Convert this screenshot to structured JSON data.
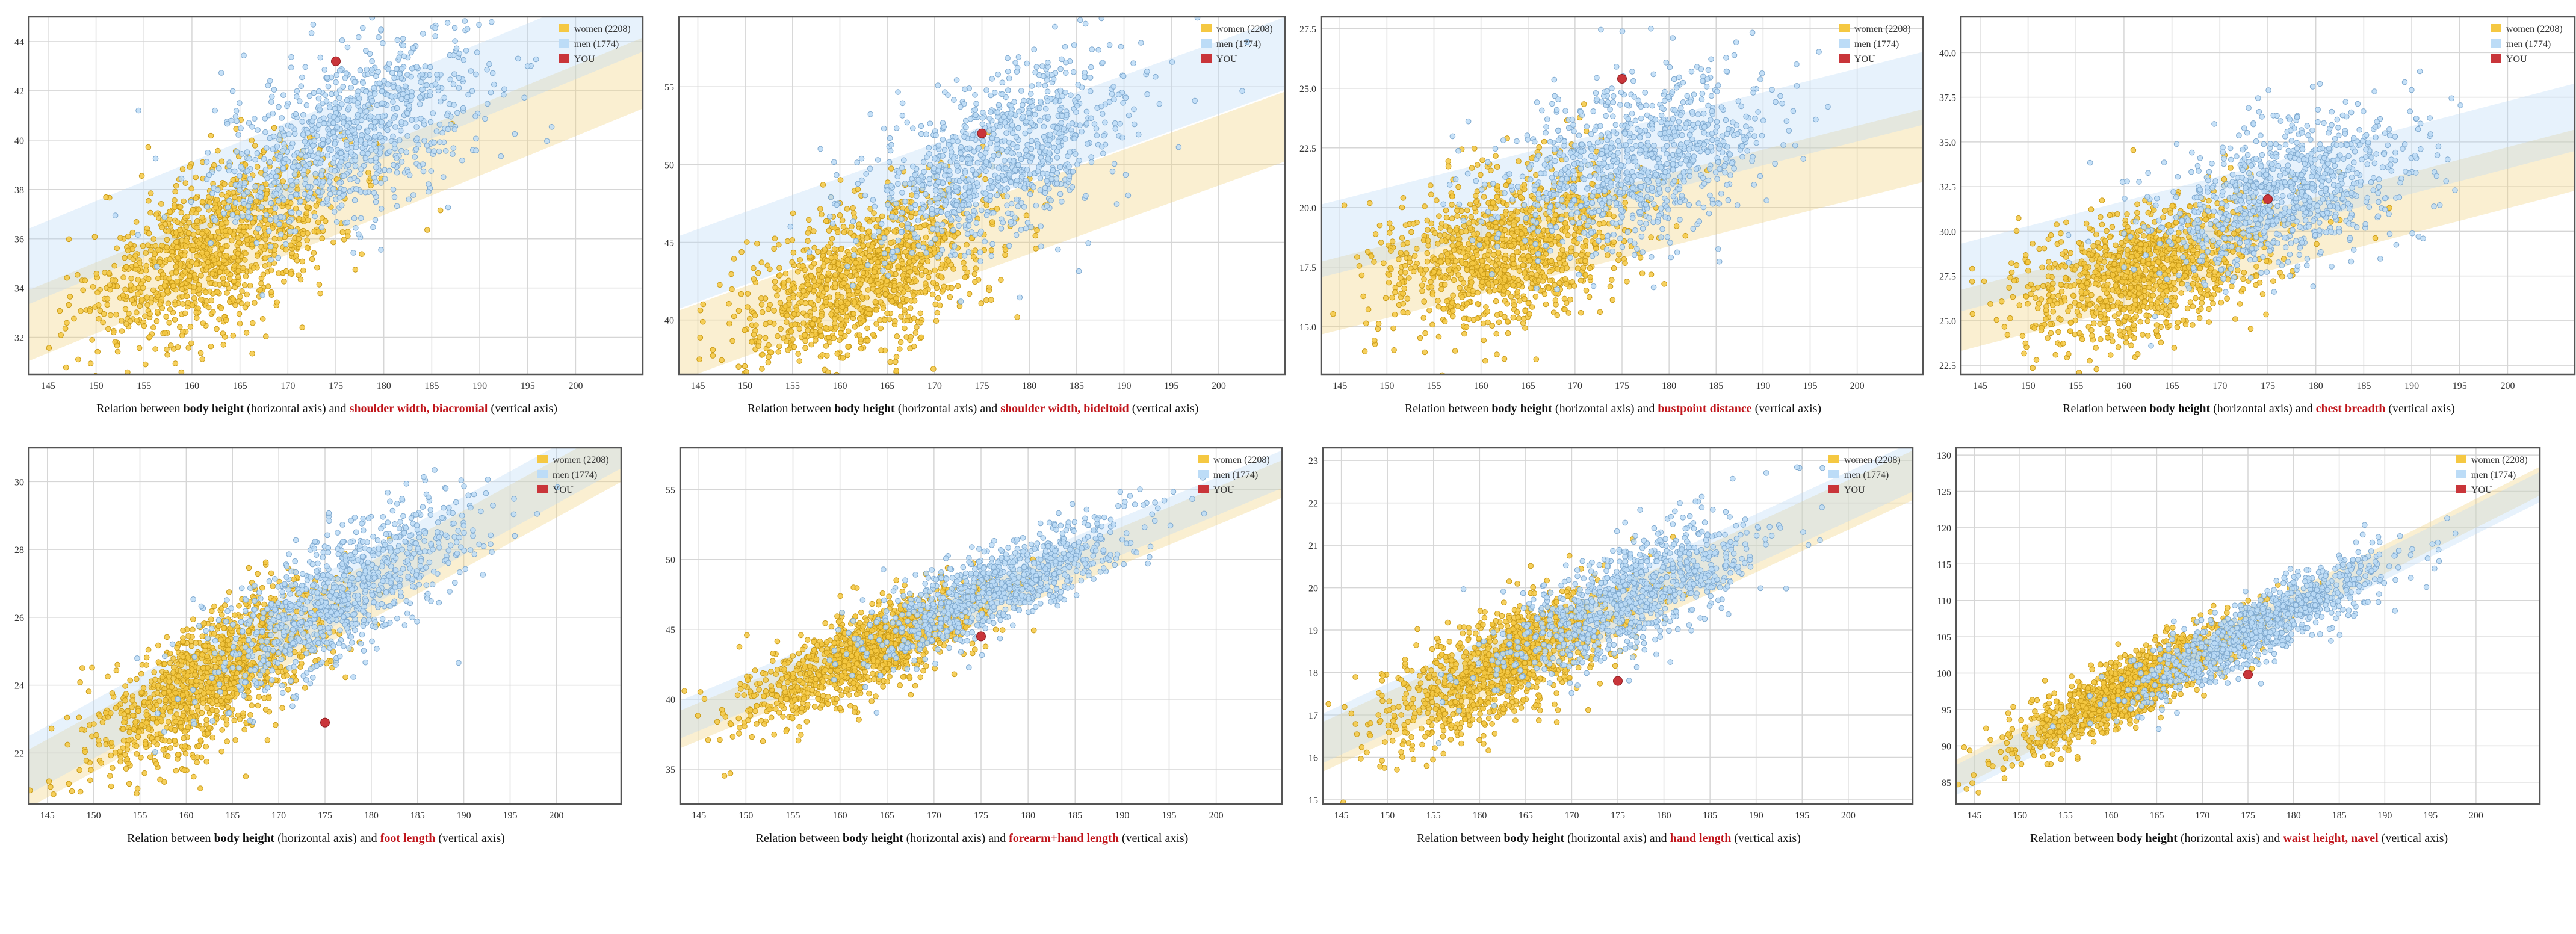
{
  "colors": {
    "women_fill": "#f5c842",
    "women_stroke": "#c99a16",
    "men_fill": "#bcdcf7",
    "men_stroke": "#7fa9cf",
    "you": "#c9353a",
    "caption_var": "#c0151b",
    "grid": "#d6d6d6",
    "frame": "#555555"
  },
  "caption_parts": {
    "prefix": "Relation between ",
    "body_height": "body height",
    "middle": " (horizontal axis) and ",
    "suffix": " (vertical axis)"
  },
  "legend": {
    "women": "women (2208)",
    "men": "men (1774)",
    "you": "YOU"
  },
  "chart_data": [
    {
      "type": "scatter",
      "variable": "shoulder width, biacromial",
      "xlim": [
        143,
        207
      ],
      "ylim": [
        30.5,
        45
      ],
      "xticks": [
        145,
        150,
        155,
        160,
        165,
        170,
        175,
        180,
        185,
        190,
        195,
        200
      ],
      "yticks": [
        32,
        34,
        36,
        38,
        40,
        42,
        44
      ],
      "ytick_labels": [
        "32",
        "34",
        "36",
        "38",
        "40",
        "42",
        "44"
      ],
      "series": [
        {
          "name": "women (2208)",
          "n": 2208,
          "x_mean": 162.5,
          "x_sd": 6.5,
          "y_at_160": 35.2,
          "slope": 0.16,
          "resid_sd": 1.6
        },
        {
          "name": "men (1774)",
          "n": 1774,
          "x_mean": 176.5,
          "x_sd": 7,
          "y_at_160": 37.6,
          "slope": 0.16,
          "resid_sd": 1.7
        }
      ],
      "you": {
        "x": 175,
        "y": 43.2
      }
    },
    {
      "type": "scatter",
      "variable": "shoulder width, bideltoid",
      "xlim": [
        143,
        207
      ],
      "ylim": [
        36.5,
        59.5
      ],
      "xticks": [
        145,
        150,
        155,
        160,
        165,
        170,
        175,
        180,
        185,
        190,
        195,
        200
      ],
      "yticks": [
        40,
        45,
        50,
        55
      ],
      "ytick_labels": [
        "40",
        "45",
        "50",
        "55"
      ],
      "series": [
        {
          "name": "women (2208)",
          "n": 2208,
          "x_mean": 162.5,
          "x_sd": 6.5,
          "y_at_160": 42.1,
          "slope": 0.22,
          "resid_sd": 2.5
        },
        {
          "name": "men (1774)",
          "n": 1774,
          "x_mean": 176.5,
          "x_sd": 7,
          "y_at_160": 46.8,
          "slope": 0.22,
          "resid_sd": 2.6
        }
      ],
      "you": {
        "x": 175,
        "y": 52
      }
    },
    {
      "type": "scatter",
      "variable": "bustpoint distance",
      "xlim": [
        143,
        207
      ],
      "ylim": [
        13,
        28
      ],
      "xticks": [
        145,
        150,
        155,
        160,
        165,
        170,
        175,
        180,
        185,
        190,
        195,
        200
      ],
      "yticks": [
        15,
        17.5,
        20,
        22.5,
        25,
        27.5
      ],
      "ytick_labels": [
        "15.0",
        "17.5",
        "20.0",
        "22.5",
        "25.0",
        "27.5"
      ],
      "series": [
        {
          "name": "women (2208)",
          "n": 2208,
          "x_mean": 162.5,
          "x_sd": 6.5,
          "y_at_160": 17.9,
          "slope": 0.1,
          "resid_sd": 1.7
        },
        {
          "name": "men (1774)",
          "n": 1774,
          "x_mean": 176.5,
          "x_sd": 7,
          "y_at_160": 20.3,
          "slope": 0.1,
          "resid_sd": 1.7
        }
      ],
      "you": {
        "x": 175,
        "y": 25.4
      }
    },
    {
      "type": "scatter",
      "variable": "chest breadth",
      "xlim": [
        143,
        207
      ],
      "ylim": [
        22,
        42
      ],
      "xticks": [
        145,
        150,
        155,
        160,
        165,
        170,
        175,
        180,
        185,
        190,
        195,
        200
      ],
      "yticks": [
        22.5,
        25,
        27.5,
        30,
        32.5,
        35,
        37.5,
        40
      ],
      "ytick_labels": [
        "22.5",
        "25.0",
        "27.5",
        "30.0",
        "32.5",
        "35.0",
        "37.5",
        "40.0"
      ],
      "series": [
        {
          "name": "women (2208)",
          "n": 2208,
          "x_mean": 162.5,
          "x_sd": 6.5,
          "y_at_160": 27.4,
          "slope": 0.14,
          "resid_sd": 1.9
        },
        {
          "name": "men (1774)",
          "n": 1774,
          "x_mean": 176.5,
          "x_sd": 7,
          "y_at_160": 29.8,
          "slope": 0.14,
          "resid_sd": 2.1
        }
      ],
      "you": {
        "x": 175,
        "y": 31.8
      }
    },
    {
      "type": "scatter",
      "variable": "foot length",
      "xlim": [
        143,
        207
      ],
      "ylim": [
        20.5,
        31
      ],
      "xticks": [
        145,
        150,
        155,
        160,
        165,
        170,
        175,
        180,
        185,
        190,
        195,
        200
      ],
      "yticks": [
        22,
        24,
        26,
        28,
        30
      ],
      "ytick_labels": [
        "22",
        "24",
        "26",
        "28",
        "30"
      ],
      "series": [
        {
          "name": "women (2208)",
          "n": 2208,
          "x_mean": 162.5,
          "x_sd": 6.5,
          "y_at_160": 23.8,
          "slope": 0.15,
          "resid_sd": 0.95
        },
        {
          "name": "men (1774)",
          "n": 1774,
          "x_mean": 176.5,
          "x_sd": 7,
          "y_at_160": 24.2,
          "slope": 0.15,
          "resid_sd": 0.95
        }
      ],
      "you": {
        "x": 175,
        "y": 22.9
      }
    },
    {
      "type": "scatter",
      "variable": "forearm+hand length",
      "xlim": [
        143,
        207
      ],
      "ylim": [
        32.5,
        58
      ],
      "xticks": [
        145,
        150,
        155,
        160,
        165,
        170,
        175,
        180,
        185,
        190,
        195,
        200
      ],
      "yticks": [
        35,
        40,
        45,
        50,
        55
      ],
      "ytick_labels": [
        "35",
        "40",
        "45",
        "50",
        "55"
      ],
      "series": [
        {
          "name": "women (2208)",
          "n": 2208,
          "x_mean": 162.5,
          "x_sd": 6.5,
          "y_at_160": 42.6,
          "slope": 0.28,
          "resid_sd": 1.5
        },
        {
          "name": "men (1774)",
          "n": 1774,
          "x_mean": 176.5,
          "x_sd": 7,
          "y_at_160": 43.3,
          "slope": 0.28,
          "resid_sd": 1.5
        }
      ],
      "you": {
        "x": 175,
        "y": 44.5
      }
    },
    {
      "type": "scatter",
      "variable": "hand length",
      "xlim": [
        143,
        207
      ],
      "ylim": [
        14.9,
        23.3
      ],
      "xticks": [
        145,
        150,
        155,
        160,
        165,
        170,
        175,
        180,
        185,
        190,
        195,
        200
      ],
      "yticks": [
        15,
        16,
        17,
        18,
        19,
        20,
        21,
        22,
        23
      ],
      "ytick_labels": [
        "15",
        "16",
        "17",
        "18",
        "19",
        "20",
        "21",
        "22",
        "23"
      ],
      "series": [
        {
          "name": "women (2208)",
          "n": 2208,
          "x_mean": 162.5,
          "x_sd": 6.5,
          "y_at_160": 17.95,
          "slope": 0.1,
          "resid_sd": 0.65
        },
        {
          "name": "men (1774)",
          "n": 1774,
          "x_mean": 176.5,
          "x_sd": 7,
          "y_at_160": 18.15,
          "slope": 0.1,
          "resid_sd": 0.65
        }
      ],
      "you": {
        "x": 175,
        "y": 17.8
      }
    },
    {
      "type": "scatter",
      "variable": "waist height, navel",
      "xlim": [
        143,
        207
      ],
      "ylim": [
        82,
        131
      ],
      "xticks": [
        145,
        150,
        155,
        160,
        165,
        170,
        175,
        180,
        185,
        190,
        195,
        200
      ],
      "yticks": [
        85,
        90,
        95,
        100,
        105,
        110,
        115,
        120,
        125,
        130
      ],
      "ytick_labels": [
        "85",
        "90",
        "95",
        "100",
        "105",
        "110",
        "115",
        "120",
        "125",
        "130"
      ],
      "series": [
        {
          "name": "women (2208)",
          "n": 2208,
          "x_mean": 162.5,
          "x_sd": 6.5,
          "y_at_160": 96.8,
          "slope": 0.63,
          "resid_sd": 2.2
        },
        {
          "name": "men (1774)",
          "n": 1774,
          "x_mean": 176.5,
          "x_sd": 7,
          "y_at_160": 96.0,
          "slope": 0.63,
          "resid_sd": 2.3
        }
      ],
      "you": {
        "x": 175,
        "y": 99.8
      }
    }
  ]
}
